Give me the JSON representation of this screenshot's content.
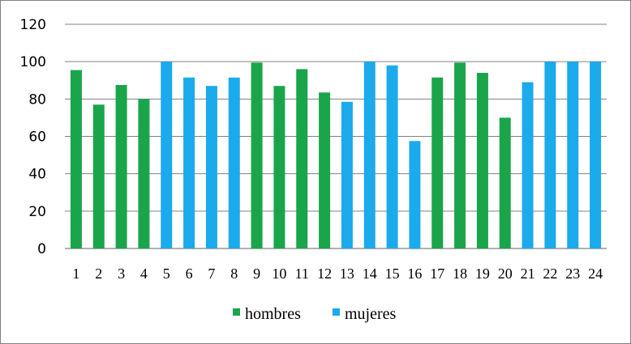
{
  "chart_data": {
    "type": "bar",
    "categories": [
      "1",
      "2",
      "3",
      "4",
      "5",
      "6",
      "7",
      "8",
      "9",
      "10",
      "11",
      "12",
      "13",
      "14",
      "15",
      "16",
      "17",
      "18",
      "19",
      "20",
      "21",
      "22",
      "23",
      "24"
    ],
    "values": [
      95.5,
      77,
      87.5,
      80,
      100,
      91.5,
      87,
      91.5,
      99.5,
      87,
      96,
      83.5,
      78.5,
      100,
      98,
      57.5,
      91.5,
      99.5,
      94,
      70,
      89,
      100,
      100,
      100
    ],
    "groups": [
      "hombres",
      "hombres",
      "hombres",
      "hombres",
      "mujeres",
      "mujeres",
      "mujeres",
      "mujeres",
      "hombres",
      "hombres",
      "hombres",
      "hombres",
      "mujeres",
      "mujeres",
      "mujeres",
      "mujeres",
      "hombres",
      "hombres",
      "hombres",
      "hombres",
      "mujeres",
      "mujeres",
      "mujeres",
      "mujeres"
    ],
    "series": [
      {
        "name": "hombres",
        "color": "#1aa54b"
      },
      {
        "name": "mujeres",
        "color": "#1baaeb"
      }
    ],
    "yticks": [
      "0",
      "20",
      "40",
      "60",
      "80",
      "100",
      "120"
    ],
    "ylim": [
      0,
      120
    ],
    "grid": true,
    "legend": "bottom",
    "title": "",
    "xlabel": "",
    "ylabel": ""
  }
}
